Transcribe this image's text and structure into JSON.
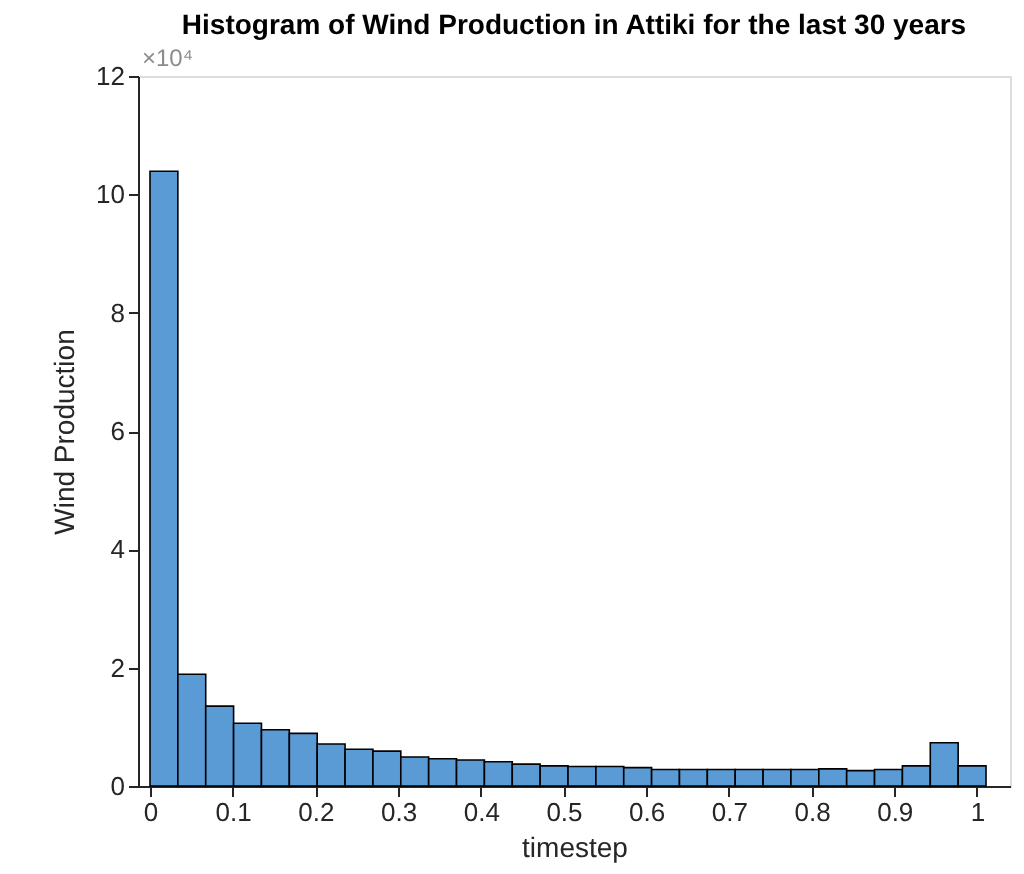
{
  "chart_data": {
    "type": "histogram",
    "title": "Histogram of Wind Production in Attiki for the last 30 years",
    "xlabel": "timestep",
    "ylabel": "Wind Production",
    "annotations": [
      "×10⁴"
    ],
    "bins": [
      0,
      0.0337,
      0.0674,
      0.1011,
      0.1348,
      0.1685,
      0.2022,
      0.2359,
      0.2696,
      0.3033,
      0.337,
      0.3707,
      0.4044,
      0.4381,
      0.4718,
      0.5055,
      0.5392,
      0.5729,
      0.6066,
      0.6403,
      0.674,
      0.7077,
      0.7414,
      0.7751,
      0.8088,
      0.8425,
      0.8762,
      0.9099,
      0.9436,
      0.9773,
      1.011
    ],
    "values": [
      10.39,
      1.89,
      1.35,
      1.06,
      0.95,
      0.89,
      0.71,
      0.62,
      0.59,
      0.49,
      0.46,
      0.44,
      0.41,
      0.37,
      0.34,
      0.33,
      0.33,
      0.31,
      0.28,
      0.28,
      0.28,
      0.28,
      0.28,
      0.28,
      0.29,
      0.26,
      0.28,
      0.34,
      0.73,
      0.34
    ],
    "color": "#5b9bd5",
    "xlim": [
      -0.0145,
      1.04
    ],
    "xticks": [
      0,
      0.1,
      0.2,
      0.3,
      0.4,
      0.5,
      0.6,
      0.7,
      0.8,
      0.9,
      1
    ],
    "ylim": [
      0,
      12
    ],
    "yticks": [
      0,
      2,
      4,
      6,
      8,
      10,
      12
    ],
    "grid": false
  }
}
